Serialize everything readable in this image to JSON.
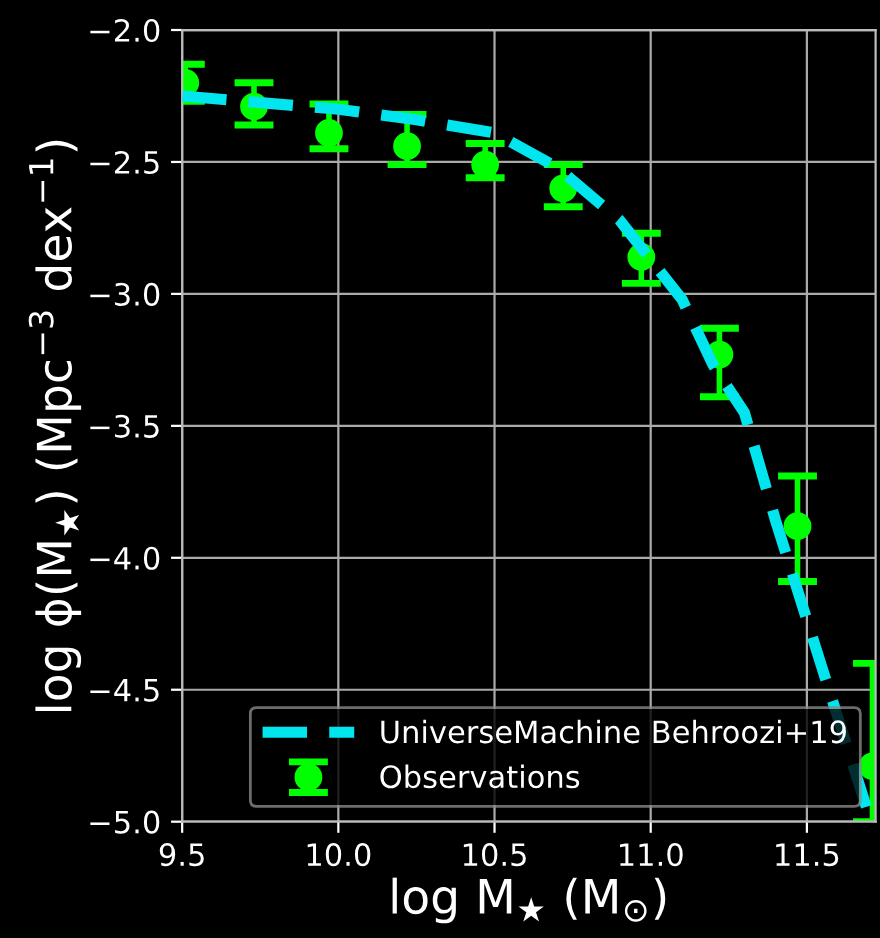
{
  "chart_data": {
    "type": "line",
    "xlabel": "log M$_{★}$ (M$_{⊙}$)",
    "ylabel": "log ϕ(M$_{★}$) (Mpc$^{−3}$ dex$^{−1}$)",
    "xlim": [
      9.5,
      11.72
    ],
    "ylim": [
      -5.0,
      -2.0
    ],
    "xticks": [
      9.5,
      {
        "value": 10.0,
        "label": "10.0"
      },
      10.5,
      {
        "value": 11.0,
        "label": "11.0"
      },
      11.5
    ],
    "yticks": [
      {
        "value": -5.0,
        "label": "−5.0"
      },
      {
        "value": -4.5,
        "label": "−4.5"
      },
      {
        "value": -4.0,
        "label": "−4.0"
      },
      {
        "value": -3.5,
        "label": "−3.5"
      },
      {
        "value": -3.0,
        "label": "−3.0"
      },
      {
        "value": -2.5,
        "label": "−2.5"
      },
      {
        "value": -2.0,
        "label": "−2.0"
      }
    ],
    "grid": true,
    "legend": "bottom right",
    "series": [
      {
        "name": "UniverseMachine Behroozi+19",
        "line_style": "dashed",
        "marker": "none",
        "color": "#00e5ee",
        "x": [
          9.5,
          10.0,
          10.25,
          10.5,
          10.7,
          10.9,
          11.1,
          11.2,
          11.3,
          11.4,
          11.56,
          11.7
        ],
        "values": [
          -2.25,
          -2.3,
          -2.34,
          -2.39,
          -2.52,
          -2.72,
          -3.02,
          -3.27,
          -3.45,
          -3.86,
          -4.46,
          -4.98
        ]
      },
      {
        "name": "Observations",
        "type": "scatter",
        "marker": "circle",
        "color": "#00ff00",
        "x": [
          9.51,
          9.73,
          9.97,
          10.22,
          10.47,
          10.72,
          10.97,
          11.22,
          11.47,
          11.71
        ],
        "values": [
          -2.2,
          -2.29,
          -2.39,
          -2.44,
          -2.51,
          -2.6,
          -2.86,
          -3.23,
          -3.88,
          -4.79
        ],
        "errors": [
          0.07,
          [
            -2.36,
            -2.2
          ],
          [
            -2.45,
            -2.28
          ],
          [
            -2.51,
            -2.32
          ],
          [
            -2.56,
            -2.43
          ],
          [
            -2.67,
            -2.51
          ],
          [
            -2.96,
            -2.77
          ],
          [
            -3.39,
            -3.13
          ],
          [
            -4.09,
            -3.69
          ],
          [
            -5.0,
            -4.4
          ]
        ]
      }
    ]
  }
}
